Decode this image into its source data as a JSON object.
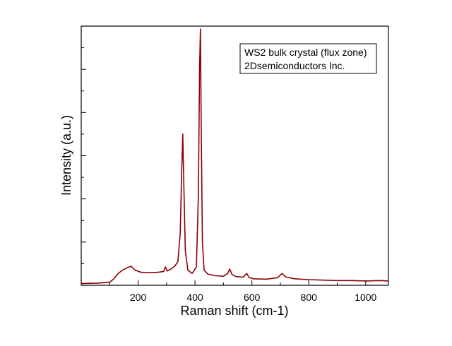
{
  "chart_data": {
    "type": "line",
    "title": "",
    "xlabel": "Raman shift (cm-1)",
    "ylabel": "Intensity (a.u.)",
    "xlim": [
      0,
      1080
    ],
    "ylim": [
      0,
      1200
    ],
    "x_ticks": [
      200,
      400,
      600,
      800,
      1000
    ],
    "y_tick_labels_shown": false,
    "grid": false,
    "legend_position": "top-right",
    "annotation_lines": [
      "WS2 bulk crystal (flux zone)",
      "2Dsemiconductors Inc."
    ],
    "series": [
      {
        "color": "#8b0000",
        "x": [
          0,
          60,
          100,
          115,
          130,
          145,
          160,
          175,
          190,
          210,
          240,
          270,
          290,
          296,
          302,
          315,
          330,
          340,
          348,
          353,
          357,
          361,
          366,
          375,
          390,
          405,
          412,
          416,
          419,
          422,
          426,
          432,
          445,
          470,
          500,
          515,
          522,
          530,
          545,
          570,
          582,
          590,
          605,
          650,
          690,
          706,
          720,
          750,
          800,
          850,
          900,
          950,
          1000,
          1050,
          1080
        ],
        "y": [
          8,
          10,
          14,
          30,
          55,
          70,
          80,
          88,
          70,
          60,
          58,
          60,
          64,
          85,
          66,
          75,
          90,
          110,
          240,
          520,
          700,
          450,
          160,
          70,
          55,
          85,
          420,
          1010,
          1250,
          700,
          200,
          70,
          52,
          44,
          42,
          55,
          75,
          50,
          40,
          38,
          55,
          36,
          30,
          28,
          35,
          55,
          38,
          30,
          26,
          24,
          22,
          22,
          20,
          22,
          20
        ]
      }
    ]
  }
}
